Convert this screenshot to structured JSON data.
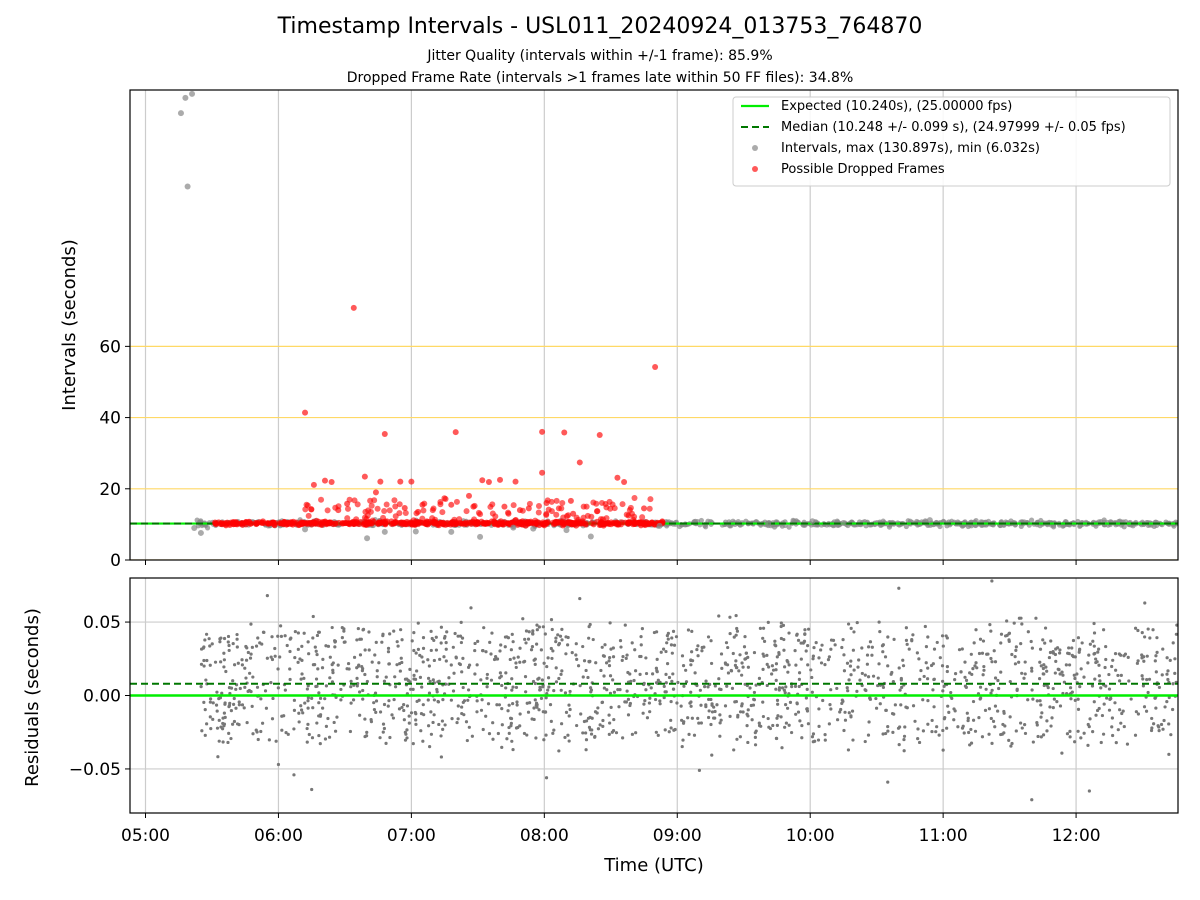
{
  "chart_data": [
    {
      "type": "scatter",
      "title": "Timestamp Intervals - USL011_20240924_013753_764870",
      "subtitle_lines": [
        "Jitter Quality (intervals within +/-1 frame): 85.9%",
        "Dropped Frame Rate (intervals >1 frames late within 50 FF files): 34.8%"
      ],
      "xlabel": "",
      "ylabel": "Intervals (seconds)",
      "xlim": [
        "04:53",
        "12:46"
      ],
      "ylim": [
        0,
        132
      ],
      "yticks": [
        0,
        20,
        40,
        60
      ],
      "hlines": [
        0,
        20,
        40,
        60
      ],
      "hline_color": "#ffd966",
      "grid_x": true,
      "legend": {
        "placement": "top-right",
        "entries": [
          "Expected (10.240s), (25.00000 fps)",
          "Median (10.248 +/- 0.099 s), (24.97999 +/- 0.05 fps)",
          "Intervals, max (130.897s), min (6.032s)",
          "Possible Dropped Frames"
        ]
      },
      "expected_interval": 10.24,
      "median_interval": 10.248,
      "interval_max": 130.897,
      "interval_min": 6.032,
      "series": [
        {
          "name": "Intervals, max (130.897s), min (6.032s)",
          "color": "#888888",
          "x": [
            "05:16",
            "05:18",
            "05:21",
            "05:19",
            "05:22",
            "05:25",
            "06:12",
            "06:40",
            "06:48",
            "07:02",
            "07:18",
            "07:31",
            "07:46",
            "07:55",
            "08:10",
            "08:21",
            "08:52",
            "09:41",
            "10:01",
            "10:15",
            "10:54"
          ],
          "y": [
            125.5,
            129.8,
            130.9,
            104.9,
            9.0,
            7.6,
            8.6,
            6.1,
            7.9,
            8.0,
            7.9,
            6.5,
            9.1,
            8.8,
            8.4,
            6.6,
            9.6,
            10.2,
            10.9,
            10.4,
            11.2
          ]
        },
        {
          "name": "Possible Dropped Frames",
          "color": "#ff0000",
          "x": [
            "06:12",
            "06:16",
            "06:21",
            "06:24",
            "06:31",
            "06:34",
            "06:39",
            "06:46",
            "06:48",
            "06:55",
            "07:00",
            "07:03",
            "07:05",
            "07:20",
            "07:26",
            "07:28",
            "07:32",
            "07:35",
            "07:40",
            "07:42",
            "07:47",
            "07:53",
            "07:59",
            "07:59",
            "08:09",
            "08:16",
            "08:25",
            "08:33",
            "08:36",
            "08:38",
            "08:45",
            "08:50",
            "06:27",
            "07:49",
            "08:01",
            "08:12",
            "08:13",
            "06:44",
            "06:57",
            "07:18"
          ],
          "y": [
            41.4,
            21.1,
            22.3,
            21.9,
            15.8,
            70.8,
            23.4,
            22.0,
            35.4,
            22.0,
            22.0,
            13.5,
            15.5,
            35.9,
            18.0,
            15.0,
            22.4,
            21.9,
            22.5,
            15.0,
            22.0,
            14.5,
            36.0,
            24.5,
            35.8,
            27.4,
            35.1,
            23.1,
            21.9,
            12.5,
            14.5,
            54.2,
            14.0,
            14.0,
            16.0,
            16.6,
            13.0,
            19.0,
            14.6,
            15.5
          ]
        }
      ],
      "dropped_band_x": [
        "05:31",
        "08:54"
      ],
      "dropped_band_y": 10.3
    },
    {
      "type": "scatter",
      "xlabel": "Time (UTC)",
      "ylabel": "Residuals (seconds)",
      "xlim": [
        "04:53",
        "12:46"
      ],
      "ylim": [
        -0.08,
        0.08
      ],
      "yticks": [
        0.05,
        0.0,
        -0.05
      ],
      "ytick_labels": [
        "0.05",
        "0.00",
        "−0.05"
      ],
      "xticks": [
        "05:00",
        "06:00",
        "07:00",
        "08:00",
        "09:00",
        "10:00",
        "11:00",
        "12:00"
      ],
      "grid": true,
      "expected_residual": 0.0,
      "median_residual": 0.008,
      "residual_spread_x": [
        "05:25",
        "12:46"
      ],
      "residual_typical_range": [
        -0.03,
        0.045
      ],
      "residual_extremes": [
        {
          "x": "05:55",
          "y": 0.068
        },
        {
          "x": "06:00",
          "y": -0.047
        },
        {
          "x": "06:07",
          "y": -0.054
        },
        {
          "x": "06:15",
          "y": -0.064
        },
        {
          "x": "08:01",
          "y": -0.056
        },
        {
          "x": "08:16",
          "y": 0.066
        },
        {
          "x": "09:10",
          "y": -0.051
        },
        {
          "x": "10:35",
          "y": -0.059
        },
        {
          "x": "10:40",
          "y": 0.073
        },
        {
          "x": "11:22",
          "y": 0.078
        },
        {
          "x": "11:40",
          "y": -0.071
        },
        {
          "x": "12:06",
          "y": -0.065
        },
        {
          "x": "12:31",
          "y": 0.063
        }
      ],
      "series_color": "#777777"
    }
  ]
}
